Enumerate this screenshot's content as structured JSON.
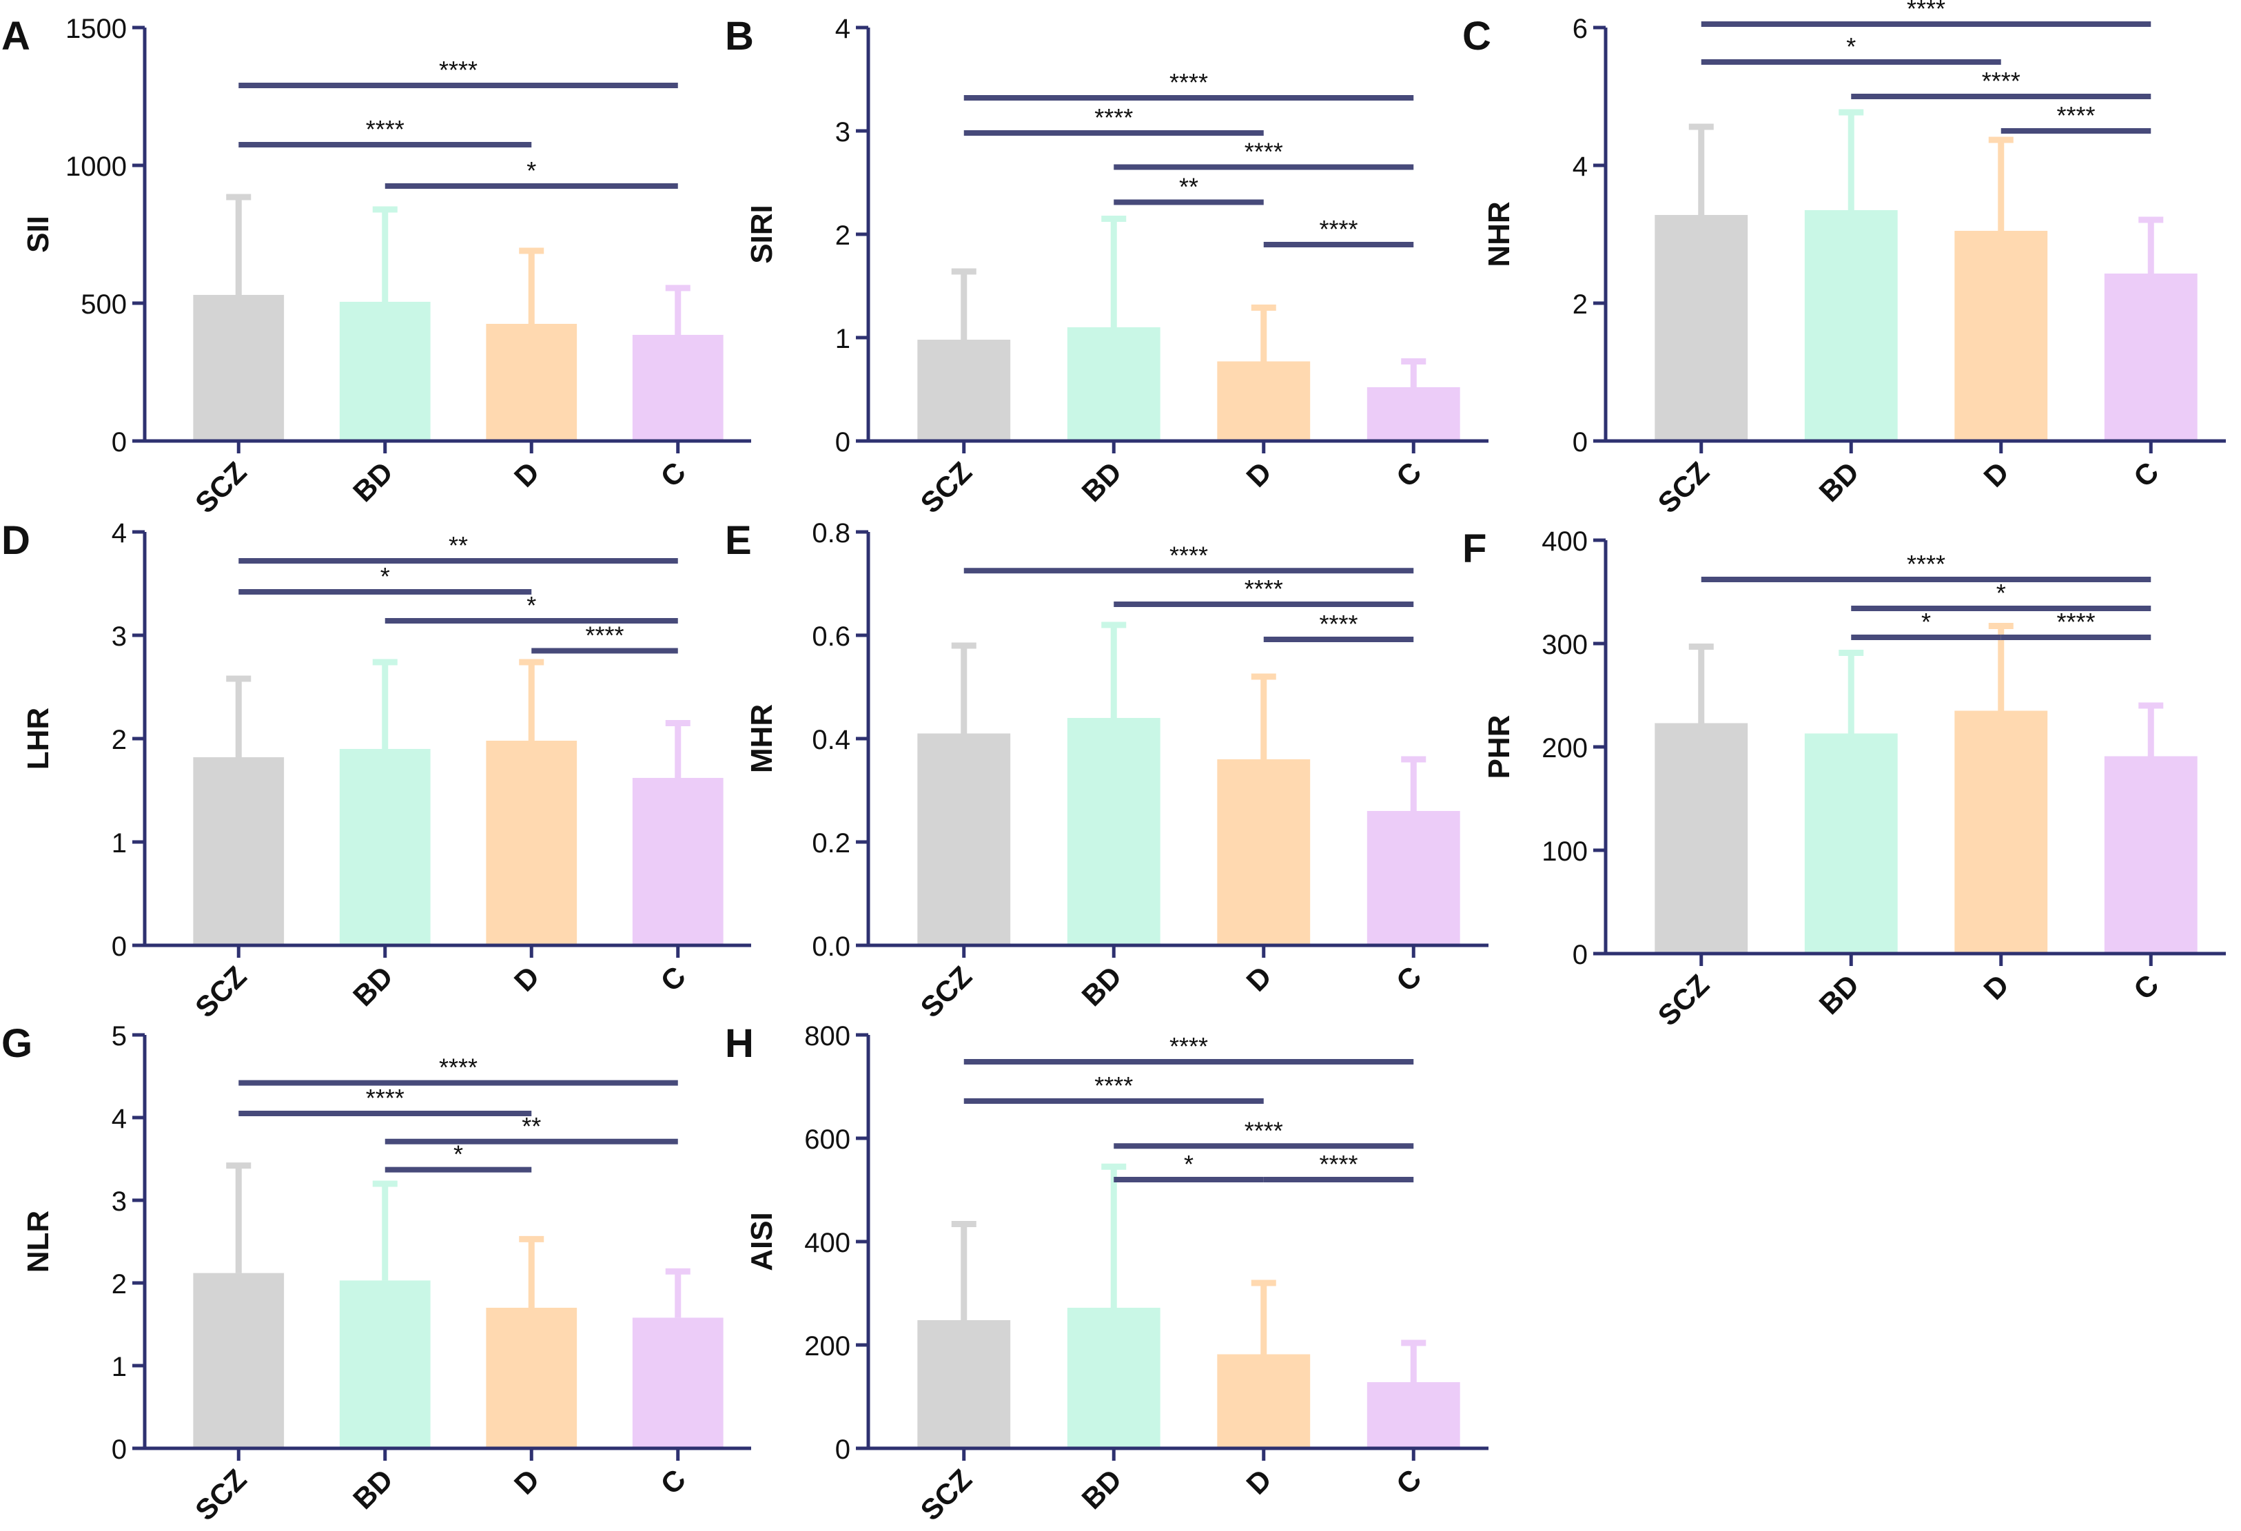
{
  "figure": {
    "colors": {
      "axis": "#2e3170",
      "text": "#111111",
      "sig_line": "#474a7a",
      "bars": [
        "#d4d4d4",
        "#c9f7e6",
        "#ffd9b0",
        "#ecccf8"
      ],
      "errors": [
        "#d4d4d4",
        "#c9f7e6",
        "#ffd9b0",
        "#ecccf8"
      ]
    }
  },
  "chart_data": [
    {
      "panel": "A",
      "type": "bar",
      "ylabel": "SII",
      "categories": [
        "SCZ",
        "BD",
        "D",
        "C"
      ],
      "values": [
        530,
        505,
        425,
        385
      ],
      "errors": [
        355,
        335,
        265,
        170
      ],
      "ylim": [
        0,
        1500
      ],
      "yticks": [
        0,
        500,
        1000,
        1500
      ],
      "ytick_labels": [
        "0",
        "500",
        "1000",
        "1500"
      ],
      "significance": [
        {
          "from": 0,
          "to": 3,
          "y": 1290,
          "label": "****"
        },
        {
          "from": 0,
          "to": 2,
          "y": 1075,
          "label": "****"
        },
        {
          "from": 1,
          "to": 3,
          "y": 925,
          "label": "*"
        }
      ]
    },
    {
      "panel": "B",
      "type": "bar",
      "ylabel": "SIRI",
      "categories": [
        "SCZ",
        "BD",
        "D",
        "C"
      ],
      "values": [
        0.98,
        1.1,
        0.77,
        0.52
      ],
      "errors": [
        0.66,
        1.05,
        0.52,
        0.25
      ],
      "ylim": [
        0,
        4
      ],
      "yticks": [
        0,
        1,
        2,
        3,
        4
      ],
      "ytick_labels": [
        "0",
        "1",
        "2",
        "3",
        "4"
      ],
      "significance": [
        {
          "from": 0,
          "to": 3,
          "y": 3.32,
          "label": "****"
        },
        {
          "from": 0,
          "to": 2,
          "y": 2.98,
          "label": "****"
        },
        {
          "from": 1,
          "to": 3,
          "y": 2.65,
          "label": "****"
        },
        {
          "from": 1,
          "to": 2,
          "y": 2.31,
          "label": "**"
        },
        {
          "from": 2,
          "to": 3,
          "y": 1.9,
          "label": "****"
        }
      ]
    },
    {
      "panel": "C",
      "type": "bar",
      "ylabel": "NHR",
      "categories": [
        "SCZ",
        "BD",
        "D",
        "C"
      ],
      "values": [
        3.28,
        3.35,
        3.05,
        2.43
      ],
      "errors": [
        1.28,
        1.42,
        1.32,
        0.78
      ],
      "ylim": [
        0,
        6
      ],
      "yticks": [
        0,
        2,
        4,
        6
      ],
      "ytick_labels": [
        "0",
        "2",
        "4",
        "6"
      ],
      "significance": [
        {
          "from": 0,
          "to": 3,
          "y": 6.05,
          "label": "****"
        },
        {
          "from": 0,
          "to": 2,
          "y": 5.5,
          "label": "*"
        },
        {
          "from": 1,
          "to": 3,
          "y": 5.0,
          "label": "****"
        },
        {
          "from": 2,
          "to": 3,
          "y": 4.5,
          "label": "****"
        }
      ]
    },
    {
      "panel": "D",
      "type": "bar",
      "ylabel": "LHR",
      "categories": [
        "SCZ",
        "BD",
        "D",
        "C"
      ],
      "values": [
        1.82,
        1.9,
        1.98,
        1.62
      ],
      "errors": [
        0.76,
        0.84,
        0.76,
        0.53
      ],
      "ylim": [
        0,
        4
      ],
      "yticks": [
        0,
        1,
        2,
        3,
        4
      ],
      "ytick_labels": [
        "0",
        "1",
        "2",
        "3",
        "4"
      ],
      "significance": [
        {
          "from": 0,
          "to": 3,
          "y": 3.72,
          "label": "**"
        },
        {
          "from": 0,
          "to": 2,
          "y": 3.42,
          "label": "*"
        },
        {
          "from": 1,
          "to": 3,
          "y": 3.14,
          "label": "*"
        },
        {
          "from": 2,
          "to": 3,
          "y": 2.85,
          "label": "****"
        }
      ]
    },
    {
      "panel": "E",
      "type": "bar",
      "ylabel": "MHR",
      "categories": [
        "SCZ",
        "BD",
        "D",
        "C"
      ],
      "values": [
        0.41,
        0.44,
        0.36,
        0.26
      ],
      "errors": [
        0.17,
        0.18,
        0.16,
        0.1
      ],
      "ylim": [
        0,
        0.8
      ],
      "yticks": [
        0,
        0.2,
        0.4,
        0.6,
        0.8
      ],
      "ytick_labels": [
        "0.0",
        "0.2",
        "0.4",
        "0.6",
        "0.8"
      ],
      "significance": [
        {
          "from": 0,
          "to": 3,
          "y": 0.725,
          "label": "****"
        },
        {
          "from": 1,
          "to": 3,
          "y": 0.66,
          "label": "****"
        },
        {
          "from": 2,
          "to": 3,
          "y": 0.592,
          "label": "****"
        }
      ]
    },
    {
      "panel": "F",
      "type": "bar",
      "ylabel": "PHR",
      "categories": [
        "SCZ",
        "BD",
        "D",
        "C"
      ],
      "values": [
        223,
        213,
        235,
        191
      ],
      "errors": [
        74,
        78,
        82,
        49
      ],
      "ylim": [
        0,
        400
      ],
      "yticks": [
        0,
        100,
        200,
        300,
        400
      ],
      "ytick_labels": [
        "0",
        "100",
        "200",
        "300",
        "400"
      ],
      "significance": [
        {
          "from": 0,
          "to": 3,
          "y": 362,
          "label": "****"
        },
        {
          "from": 1,
          "to": 3,
          "y": 334,
          "label": "*"
        },
        {
          "from": 1,
          "to": 2,
          "y": 306,
          "label": "*"
        },
        {
          "from": 2,
          "to": 3,
          "y": 306,
          "label": "****"
        }
      ]
    },
    {
      "panel": "G",
      "type": "bar",
      "ylabel": "NLR",
      "categories": [
        "SCZ",
        "BD",
        "D",
        "C"
      ],
      "values": [
        2.12,
        2.03,
        1.7,
        1.58
      ],
      "errors": [
        1.3,
        1.17,
        0.83,
        0.56
      ],
      "ylim": [
        0,
        5
      ],
      "yticks": [
        0,
        1,
        2,
        3,
        4,
        5
      ],
      "ytick_labels": [
        "0",
        "1",
        "2",
        "3",
        "4",
        "5"
      ],
      "significance": [
        {
          "from": 0,
          "to": 3,
          "y": 4.42,
          "label": "****"
        },
        {
          "from": 0,
          "to": 2,
          "y": 4.05,
          "label": "****"
        },
        {
          "from": 1,
          "to": 3,
          "y": 3.71,
          "label": "**"
        },
        {
          "from": 1,
          "to": 2,
          "y": 3.37,
          "label": "*"
        }
      ]
    },
    {
      "panel": "H",
      "type": "bar",
      "ylabel": "AISI",
      "categories": [
        "SCZ",
        "BD",
        "D",
        "C"
      ],
      "values": [
        248,
        272,
        182,
        128
      ],
      "errors": [
        186,
        273,
        138,
        76
      ],
      "ylim": [
        0,
        800
      ],
      "yticks": [
        0,
        200,
        400,
        600,
        800
      ],
      "ytick_labels": [
        "0",
        "200",
        "400",
        "600",
        "800"
      ],
      "significance": [
        {
          "from": 0,
          "to": 3,
          "y": 748,
          "label": "****"
        },
        {
          "from": 0,
          "to": 2,
          "y": 672,
          "label": "****"
        },
        {
          "from": 1,
          "to": 3,
          "y": 585,
          "label": "****"
        },
        {
          "from": 1,
          "to": 2,
          "y": 520,
          "label": "*"
        },
        {
          "from": 2,
          "to": 3,
          "y": 520,
          "label": "****"
        }
      ]
    }
  ]
}
